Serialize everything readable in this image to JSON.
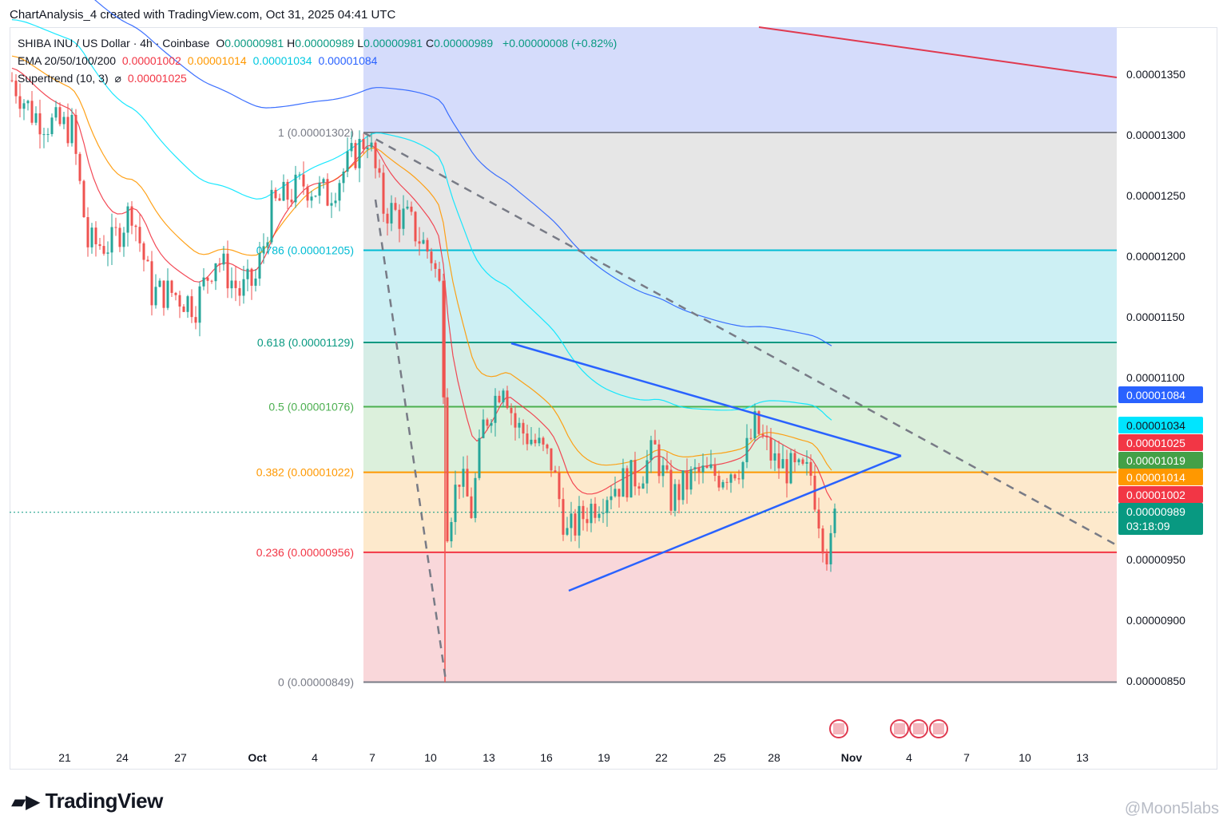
{
  "header": {
    "title": "ChartAnalysis_4 created with TradingView.com, Oct 31, 2025 04:41 UTC"
  },
  "legend": {
    "symbol": "SHIBA INU / US Dollar · 4h · Coinbase",
    "ohlc": [
      {
        "k": "O",
        "v": "0.00000981"
      },
      {
        "k": "H",
        "v": "0.00000989"
      },
      {
        "k": "L",
        "v": "0.00000981"
      },
      {
        "k": "C",
        "v": "0.00000989"
      }
    ],
    "change": "+0.00000008 (+0.82%)",
    "ema_label": "EMA 20/50/100/200",
    "ema_values": [
      "0.00001002",
      "0.00001014",
      "0.00001034",
      "0.00001084"
    ],
    "supertrend_label": "Supertrend (10, 3)",
    "supertrend_symbol": "⌀",
    "supertrend_value": "0.00001025"
  },
  "colors": {
    "up": "#26a69a",
    "down": "#ef5350",
    "ema20": "#f23645",
    "ema50": "#ff9800",
    "ema100": "#00e5ff",
    "ema200": "#2962ff",
    "triangle": "#2962ff",
    "resistance": "#e0394f"
  },
  "chart_data": {
    "type": "candlestick",
    "title": "SHIBA INU / US Dollar · 4h · Coinbase",
    "y_ticks": [
      "0.00001350",
      "0.00001300",
      "0.00001250",
      "0.00001200",
      "0.00001150",
      "0.00001100",
      "0.00000950",
      "0.00000900",
      "0.00000850"
    ],
    "ylim": [
      8.1e-06,
      1.39e-05
    ],
    "x_ticks": [
      "21",
      "24",
      "27",
      "Oct",
      "4",
      "7",
      "10",
      "13",
      "16",
      "19",
      "22",
      "25",
      "28",
      "Nov",
      "4",
      "7",
      "10",
      "13"
    ],
    "fib_levels": [
      {
        "ratio": "1",
        "price": 1.302e-05,
        "label": "1 (0.00001302)",
        "color": "#787b86"
      },
      {
        "ratio": "0.786",
        "price": 1.205e-05,
        "label": "0.786 (0.00001205)",
        "color": "#00bcd4"
      },
      {
        "ratio": "0.618",
        "price": 1.129e-05,
        "label": "0.618 (0.00001129)",
        "color": "#089981"
      },
      {
        "ratio": "0.5",
        "price": 1.076e-05,
        "label": "0.5 (0.00001076)",
        "color": "#4caf50"
      },
      {
        "ratio": "0.382",
        "price": 1.022e-05,
        "label": "0.382 (0.00001022)",
        "color": "#ff9800"
      },
      {
        "ratio": "0.236",
        "price": 9.56e-06,
        "label": "0.236 (0.00000956)",
        "color": "#f23645"
      },
      {
        "ratio": "0",
        "price": 8.49e-06,
        "label": "0 (0.00000849)",
        "color": "#787b86"
      }
    ],
    "price_tags": [
      {
        "value": "0.00001084",
        "price": 1.084e-05,
        "bg": "#2962ff",
        "fg": "#ffffff"
      },
      {
        "value": "0.00001034",
        "price": 1.034e-05,
        "bg": "#00e5ff",
        "fg": "#131722"
      },
      {
        "value": "0.00001025",
        "price": 1.025e-05,
        "bg": "#f23645",
        "fg": "#ffffff"
      },
      {
        "value": "0.00001019",
        "price": 1.019e-05,
        "bg": "#43a047",
        "fg": "#ffffff"
      },
      {
        "value": "0.00001014",
        "price": 1.014e-05,
        "bg": "#ff9800",
        "fg": "#ffffff"
      },
      {
        "value": "0.00001002",
        "price": 1.002e-05,
        "bg": "#f23645",
        "fg": "#ffffff"
      },
      {
        "value": "0.00000989",
        "price": 9.89e-06,
        "bg": "#089981",
        "fg": "#ffffff"
      }
    ],
    "countdown": "03:18:09",
    "last_price": 9.89e-06
  },
  "watermark": "@Moon5labs",
  "brand": "TradingView"
}
